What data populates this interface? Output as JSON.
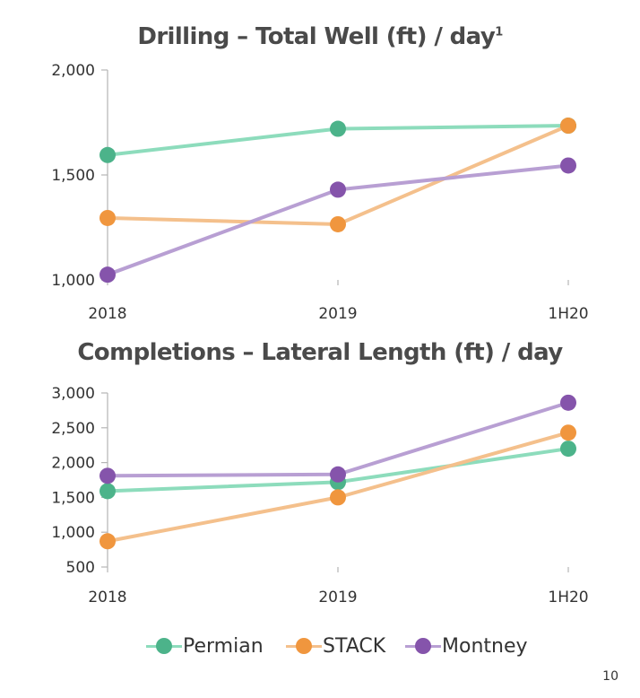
{
  "colors": {
    "Permian": "#8ddcbc",
    "Permian_marker": "#4cb38a",
    "STACK": "#f4c08c",
    "STACK_marker": "#f0963e",
    "Montney": "#b89fd3",
    "Montney_marker": "#8554ab"
  },
  "chart_data": [
    {
      "type": "line",
      "title": "Drilling – Total  Well (ft)  / day",
      "title_superscript": "1",
      "categories": [
        "2018",
        "2019",
        "1H20"
      ],
      "ylim": [
        1000,
        2000
      ],
      "yticks": [
        "1,000",
        "1,500",
        "2,000"
      ],
      "ytick_values": [
        1000,
        1500,
        2000
      ],
      "series": [
        {
          "name": "Permian",
          "values": [
            1595,
            1720,
            1735
          ]
        },
        {
          "name": "STACK",
          "values": [
            1295,
            1265,
            1735
          ]
        },
        {
          "name": "Montney",
          "values": [
            1025,
            1430,
            1545
          ]
        }
      ]
    },
    {
      "type": "line",
      "title": "Completions – Lateral Length (ft) / day",
      "categories": [
        "2018",
        "2019",
        "1H20"
      ],
      "ylim": [
        500,
        3000
      ],
      "yticks": [
        "500",
        "1,000",
        "1,500",
        "2,000",
        "2,500",
        "3,000"
      ],
      "ytick_values": [
        500,
        1000,
        1500,
        2000,
        2500,
        3000
      ],
      "series": [
        {
          "name": "Permian",
          "values": [
            1590,
            1720,
            2200
          ]
        },
        {
          "name": "STACK",
          "values": [
            870,
            1500,
            2430
          ]
        },
        {
          "name": "Montney",
          "values": [
            1810,
            1830,
            2860
          ]
        }
      ]
    }
  ],
  "legend": [
    {
      "label": "Permian"
    },
    {
      "label": "STACK"
    },
    {
      "label": "Montney"
    }
  ],
  "page_number": "10"
}
